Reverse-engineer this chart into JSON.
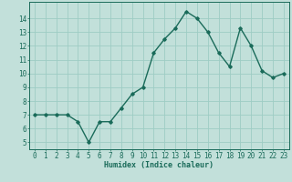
{
  "x": [
    0,
    1,
    2,
    3,
    4,
    5,
    6,
    7,
    8,
    9,
    10,
    11,
    12,
    13,
    14,
    15,
    16,
    17,
    18,
    19,
    20,
    21,
    22,
    23
  ],
  "y": [
    7.0,
    7.0,
    7.0,
    7.0,
    6.5,
    5.0,
    6.5,
    6.5,
    7.5,
    8.5,
    9.0,
    11.5,
    12.5,
    13.3,
    14.5,
    14.0,
    13.0,
    11.5,
    10.5,
    13.3,
    12.0,
    10.2,
    9.7,
    10.0
  ],
  "line_color": "#1a6b5a",
  "bg_color": "#c2e0da",
  "grid_color": "#9eccc4",
  "xlabel": "Humidex (Indice chaleur)",
  "ylim": [
    4.5,
    15.2
  ],
  "xlim": [
    -0.5,
    23.5
  ],
  "yticks": [
    5,
    6,
    7,
    8,
    9,
    10,
    11,
    12,
    13,
    14
  ],
  "xticks": [
    0,
    1,
    2,
    3,
    4,
    5,
    6,
    7,
    8,
    9,
    10,
    11,
    12,
    13,
    14,
    15,
    16,
    17,
    18,
    19,
    20,
    21,
    22,
    23
  ],
  "marker": "D",
  "marker_size": 1.8,
  "linewidth": 1.0,
  "xlabel_fontsize": 6.0,
  "tick_fontsize": 5.5
}
